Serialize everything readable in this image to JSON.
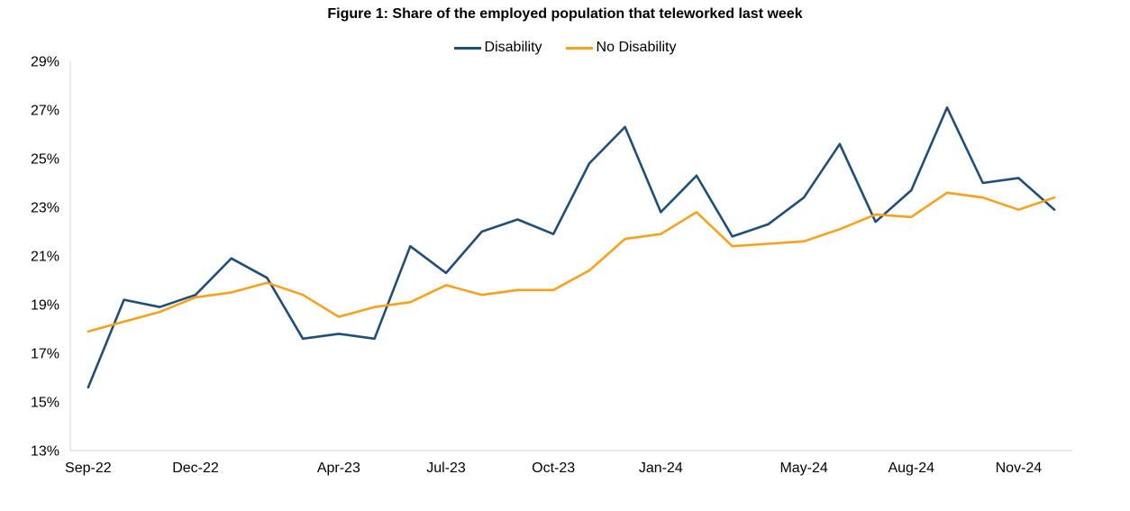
{
  "chart_data": {
    "type": "line",
    "title": "Figure 1: Share of the employed population that teleworked last week",
    "x_categories": [
      "Sep-22",
      "Oct-22",
      "Nov-22",
      "Dec-22",
      "Jan-23",
      "Feb-23",
      "Mar-23",
      "Apr-23",
      "May-23",
      "Jun-23",
      "Jul-23",
      "Aug-23",
      "Sep-23",
      "Oct-23",
      "Nov-23",
      "Dec-23",
      "Jan-24",
      "Feb-24",
      "Mar-24",
      "Apr-24",
      "May-24",
      "Jun-24",
      "Jul-24",
      "Aug-24",
      "Sep-24",
      "Oct-24",
      "Nov-24",
      "Dec-24"
    ],
    "series": [
      {
        "name": "Disability",
        "color": "#1f4e79",
        "values": [
          15.6,
          19.2,
          18.9,
          19.4,
          20.9,
          20.1,
          17.6,
          17.8,
          17.6,
          21.4,
          20.3,
          22.0,
          22.5,
          21.9,
          24.8,
          26.3,
          22.8,
          24.3,
          21.8,
          22.3,
          23.4,
          25.6,
          22.4,
          23.7,
          27.1,
          24.0,
          24.2,
          22.9
        ]
      },
      {
        "name": "No Disability",
        "color": "#f9a11b",
        "values": [
          17.9,
          18.3,
          18.7,
          19.3,
          19.5,
          19.9,
          19.4,
          18.5,
          18.9,
          19.1,
          19.8,
          19.4,
          19.6,
          19.6,
          20.4,
          21.7,
          21.9,
          22.8,
          21.4,
          21.5,
          21.6,
          22.1,
          22.7,
          22.6,
          23.6,
          23.4,
          22.9,
          23.4
        ]
      }
    ],
    "xtick_labels": [
      "Sep-22",
      "Dec-22",
      "Apr-23",
      "Jul-23",
      "Oct-23",
      "Jan-24",
      "May-24",
      "Aug-24",
      "Nov-24"
    ],
    "xtick_indices": [
      0,
      3,
      7,
      10,
      13,
      16,
      20,
      23,
      26
    ],
    "ylim": [
      13,
      29
    ],
    "ytick_step": 2,
    "ytick_labels": [
      "13%",
      "15%",
      "17%",
      "19%",
      "21%",
      "23%",
      "25%",
      "27%",
      "29%"
    ],
    "grid": "off",
    "legend_position": "top-center",
    "axis_color": "#d6d6d6",
    "ylabel": "",
    "xlabel": ""
  }
}
